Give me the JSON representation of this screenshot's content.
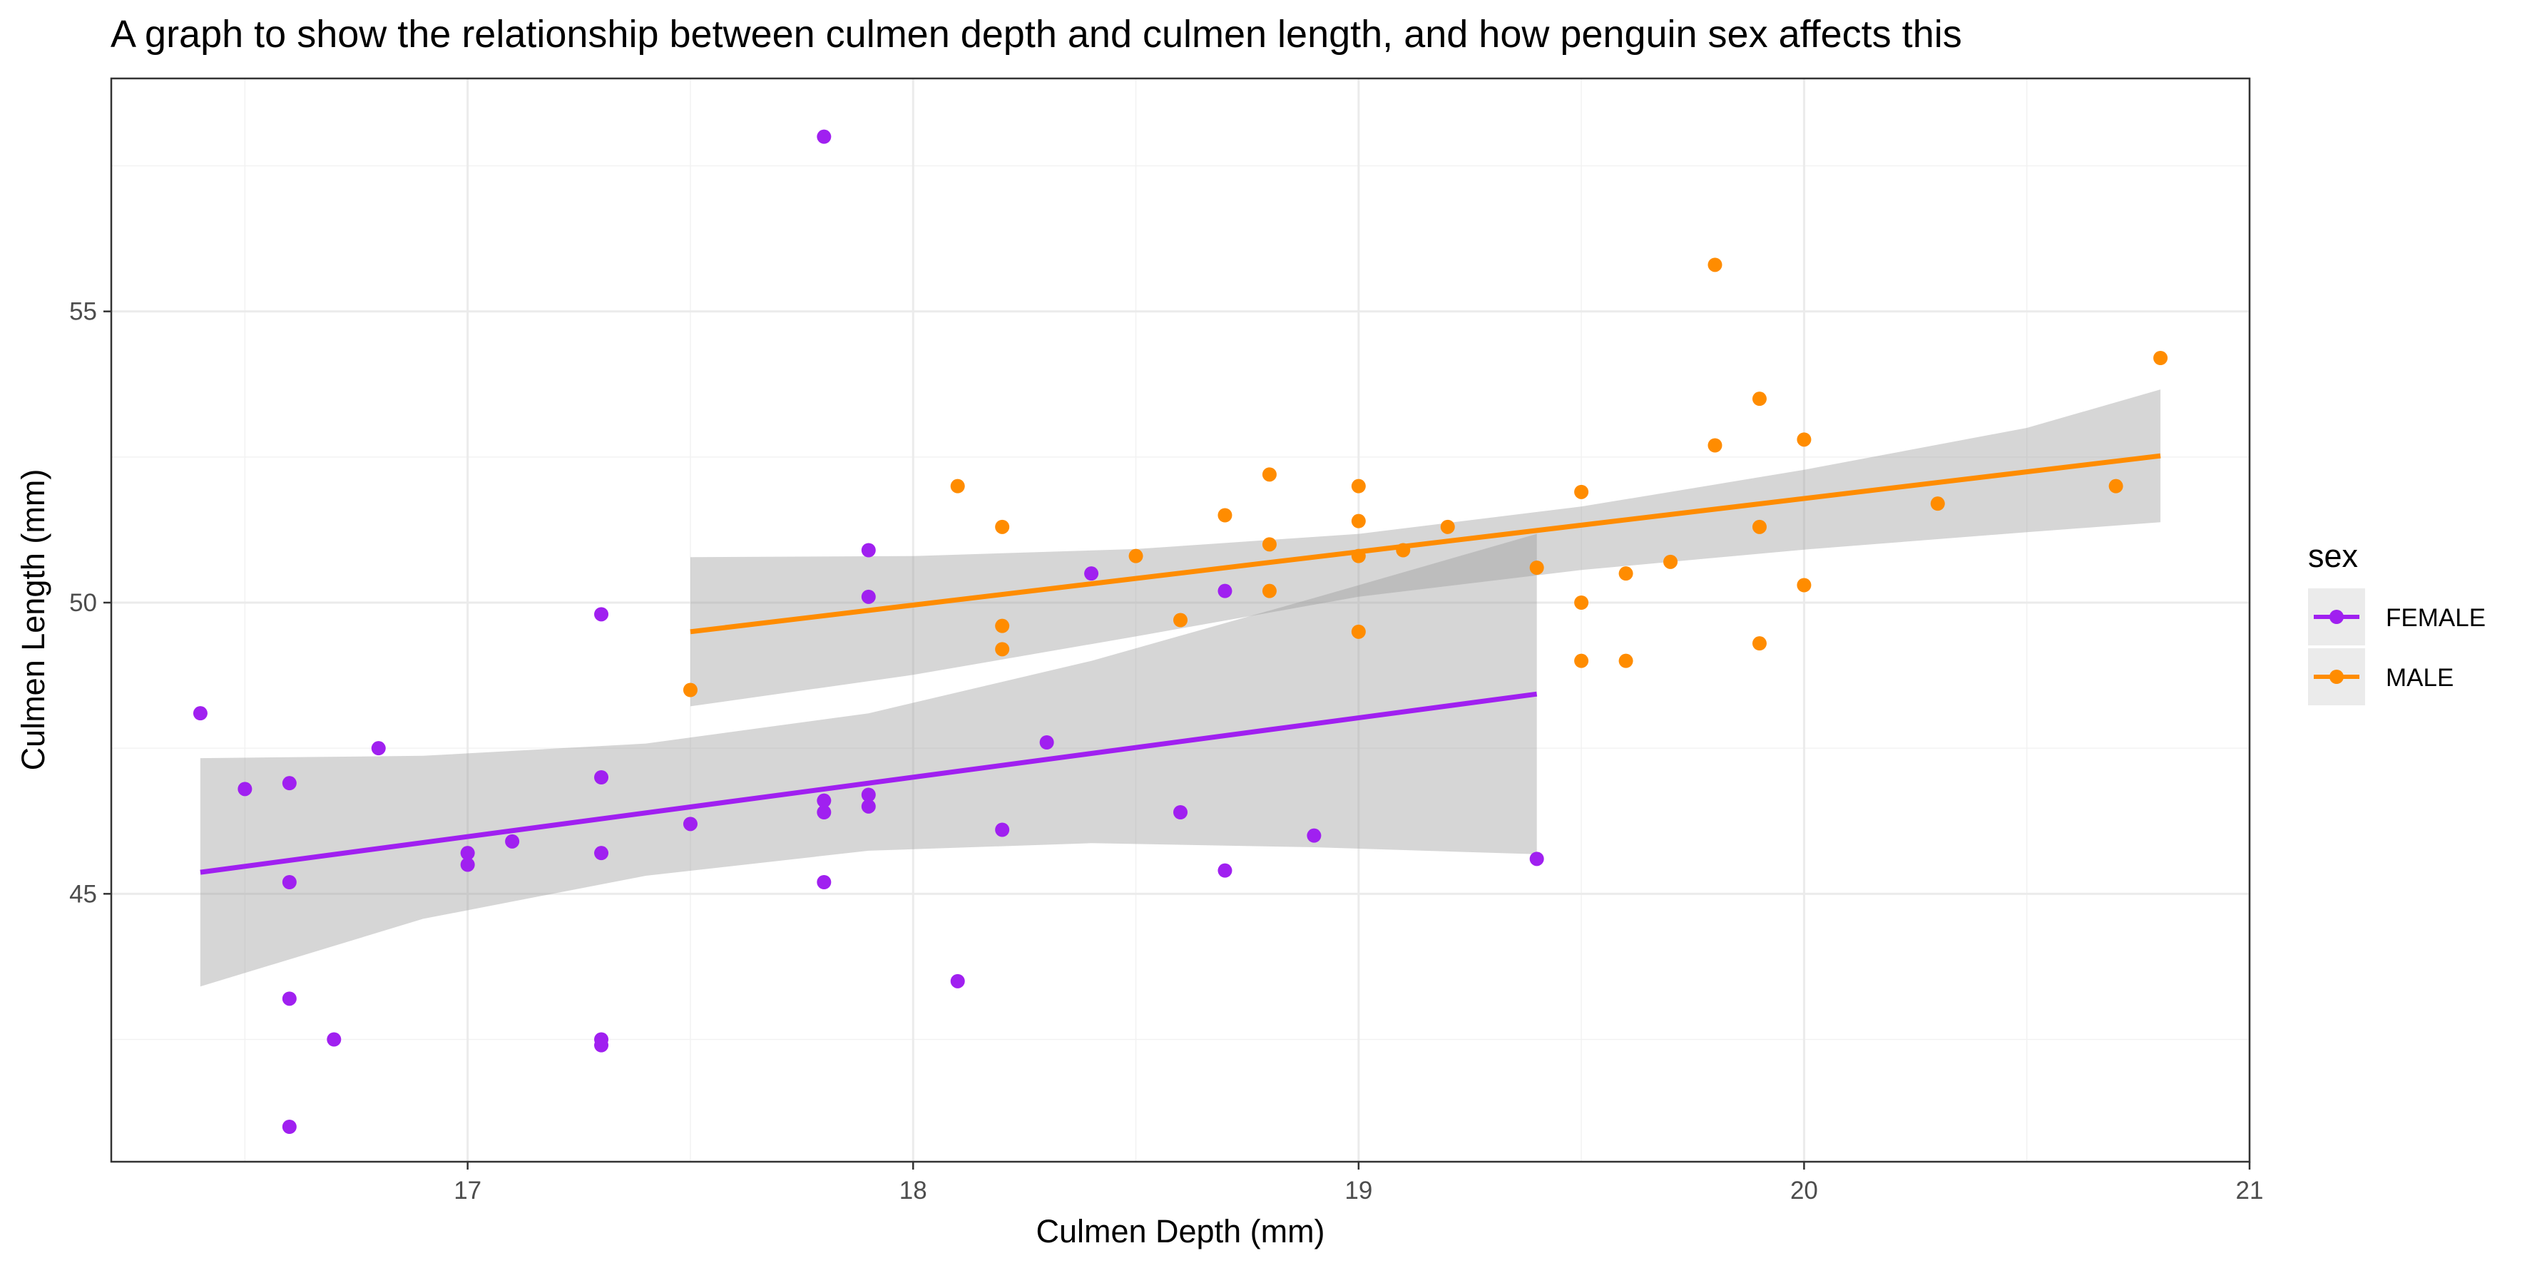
{
  "chart_data": {
    "type": "scatter",
    "title": "A graph to show the relationship between culmen depth and culmen length, and how penguin sex affects this",
    "xlabel": "Culmen Depth (mm)",
    "ylabel": "Culmen Length (mm)",
    "xlim": [
      16.2,
      21.0
    ],
    "ylim": [
      40.4,
      59.0
    ],
    "x_ticks": [
      17,
      18,
      19,
      20,
      21
    ],
    "y_ticks": [
      45,
      50,
      55
    ],
    "grid": true,
    "theme": "bw",
    "legend": {
      "title": "sex",
      "position": "right",
      "entries": [
        "FEMALE",
        "MALE"
      ]
    },
    "series": [
      {
        "name": "FEMALE",
        "color": "#a020f0",
        "points": [
          [
            16.4,
            48.1
          ],
          [
            16.5,
            46.8
          ],
          [
            16.6,
            46.9
          ],
          [
            16.6,
            45.2
          ],
          [
            16.6,
            43.2
          ],
          [
            16.6,
            41.0
          ],
          [
            16.7,
            42.5
          ],
          [
            16.8,
            47.5
          ],
          [
            17.0,
            45.7
          ],
          [
            17.0,
            45.5
          ],
          [
            17.1,
            45.9
          ],
          [
            17.3,
            49.8
          ],
          [
            17.3,
            47.0
          ],
          [
            17.3,
            45.7
          ],
          [
            17.3,
            42.5
          ],
          [
            17.3,
            42.4
          ],
          [
            17.5,
            46.2
          ],
          [
            17.8,
            58.0
          ],
          [
            17.8,
            46.6
          ],
          [
            17.8,
            46.4
          ],
          [
            17.8,
            45.2
          ],
          [
            17.9,
            50.9
          ],
          [
            17.9,
            50.1
          ],
          [
            17.9,
            46.7
          ],
          [
            17.9,
            46.5
          ],
          [
            18.1,
            43.5
          ],
          [
            18.2,
            46.1
          ],
          [
            18.3,
            47.6
          ],
          [
            18.4,
            50.5
          ],
          [
            18.6,
            46.4
          ],
          [
            18.7,
            50.2
          ],
          [
            18.7,
            45.4
          ],
          [
            18.9,
            46.0
          ],
          [
            19.4,
            45.6
          ]
        ],
        "trend": {
          "x_start": 16.4,
          "y_start": 45.37,
          "x_end": 19.4,
          "y_end": 48.43
        },
        "band": {
          "x": [
            16.4,
            16.9,
            17.4,
            17.9,
            18.4,
            18.9,
            19.4
          ],
          "upper": [
            47.33,
            47.37,
            47.58,
            48.1,
            49.0,
            50.08,
            51.18
          ],
          "lower": [
            43.41,
            44.57,
            45.31,
            45.74,
            45.87,
            45.8,
            45.68
          ]
        }
      },
      {
        "name": "MALE",
        "color": "#ff8c00",
        "points": [
          [
            17.5,
            48.5
          ],
          [
            18.1,
            52.0
          ],
          [
            18.2,
            51.3
          ],
          [
            18.2,
            49.6
          ],
          [
            18.2,
            49.2
          ],
          [
            18.5,
            50.8
          ],
          [
            18.6,
            49.7
          ],
          [
            18.7,
            51.5
          ],
          [
            18.8,
            52.2
          ],
          [
            18.8,
            51.0
          ],
          [
            18.8,
            50.2
          ],
          [
            19.0,
            52.0
          ],
          [
            19.0,
            51.4
          ],
          [
            19.0,
            50.8
          ],
          [
            19.0,
            49.5
          ],
          [
            19.1,
            50.9
          ],
          [
            19.2,
            51.3
          ],
          [
            19.4,
            50.6
          ],
          [
            19.5,
            51.9
          ],
          [
            19.5,
            50.0
          ],
          [
            19.5,
            49.0
          ],
          [
            19.6,
            50.5
          ],
          [
            19.6,
            49.0
          ],
          [
            19.7,
            50.7
          ],
          [
            19.8,
            55.8
          ],
          [
            19.8,
            52.7
          ],
          [
            19.9,
            53.5
          ],
          [
            19.9,
            51.3
          ],
          [
            19.9,
            49.3
          ],
          [
            20.0,
            52.8
          ],
          [
            20.0,
            50.3
          ],
          [
            20.3,
            51.7
          ],
          [
            20.7,
            52.0
          ],
          [
            20.8,
            54.2
          ]
        ],
        "trend": {
          "x_start": 17.5,
          "y_start": 49.5,
          "x_end": 20.8,
          "y_end": 52.52
        },
        "band": {
          "x": [
            17.5,
            18.0,
            18.5,
            19.0,
            19.5,
            20.0,
            20.5,
            20.8
          ],
          "upper": [
            50.78,
            50.8,
            50.92,
            51.18,
            51.65,
            52.28,
            53.0,
            53.66
          ],
          "lower": [
            48.22,
            48.76,
            49.42,
            50.1,
            50.56,
            50.91,
            51.21,
            51.38
          ]
        }
      }
    ]
  }
}
